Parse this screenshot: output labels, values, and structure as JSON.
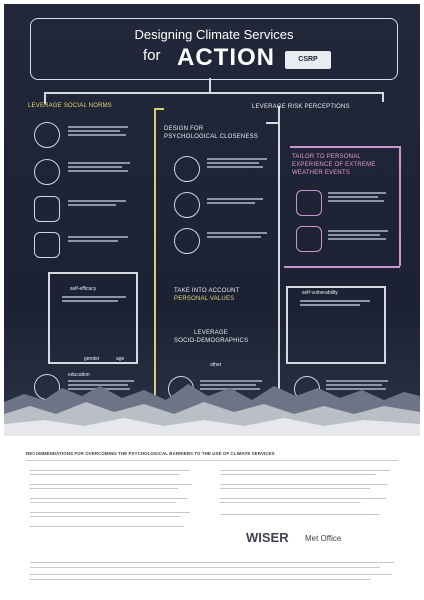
{
  "header": {
    "title_line1": "Designing Climate Services",
    "title_line2": "for",
    "title_action": "ACTION",
    "partner_logo": "CSRP"
  },
  "sections": {
    "social_norms": "LEVERAGE SOCIAL NORMS",
    "risk_perceptions": "LEVERAGE RISK PERCEPTIONS",
    "psych_closeness_1": "DESIGN FOR",
    "psych_closeness_2": "PSYCHOLOGICAL CLOSENESS",
    "tailor_1": "TAILOR TO PERSONAL",
    "tailor_2": "EXPERIENCE OF EXTREME",
    "tailor_3": "WEATHER EVENTS",
    "values_1": "TAKE INTO ACCOUNT",
    "values_2": "PERSONAL VALUES",
    "socio_1": "LEVERAGE",
    "socio_2": "SOCIO-DEMOGRAPHICS",
    "self_efficacy": "self-efficacy",
    "self_vulnerability": "self-vulnerability",
    "gender": "gender",
    "age": "age",
    "education": "education",
    "other": "other"
  },
  "footer": {
    "heading": "RECOMMENDATIONS FOR OVERCOMING THE PSYCHOLOGICAL BARRIERS TO THE USE OF CLIMATE SERVICES",
    "logo_wiser": "WISER",
    "logo_met": "Met Office"
  }
}
